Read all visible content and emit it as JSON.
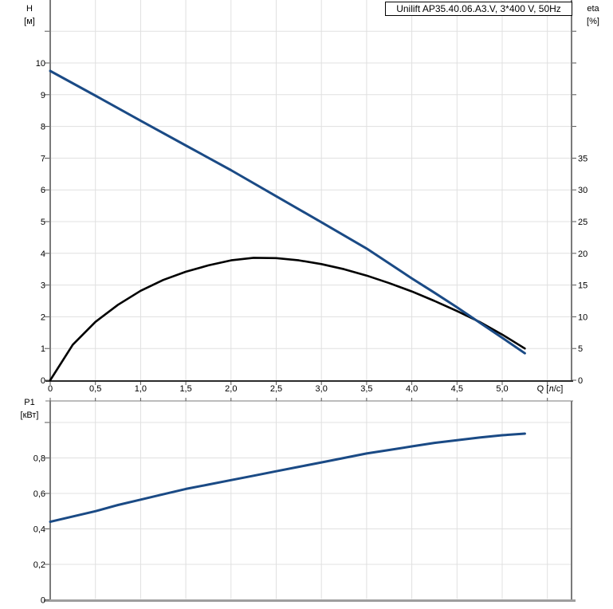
{
  "title_box": {
    "text": "Unilift AP35.40.06.A3.V, 3*400 V, 50Hz"
  },
  "colors": {
    "curve_blue": "#1a4a85",
    "curve_black": "#000000",
    "grid": "#e0e0e0",
    "axis_side": "#7a7a7a",
    "axis_bottom_top_chart": "#2b2b2b",
    "axis_bottom_bottom_chart": "#9e9e9e",
    "tick": "#555555",
    "text": "#000000",
    "background": "#ffffff"
  },
  "chart_data": [
    {
      "type": "line",
      "title": "Unilift AP35.40.06.A3.V, 3*400 V, 50Hz",
      "x_axis": {
        "label": "Q [л/с]",
        "range": [
          0,
          5.77
        ],
        "grid_step": 0.5,
        "gridlines": [
          0.5,
          1,
          1.5,
          2,
          2.5,
          3,
          3.5,
          4,
          4.5,
          5,
          5.5
        ],
        "tick_marks": [
          0,
          0.5,
          1,
          1.5,
          2,
          2.5,
          3,
          3.5,
          4,
          4.5,
          5,
          5.5
        ],
        "ticks": [
          [
            0,
            "0"
          ],
          [
            0.5,
            "0,5"
          ],
          [
            1,
            "1,0"
          ],
          [
            1.5,
            "1,5"
          ],
          [
            2,
            "2,0"
          ],
          [
            2.5,
            "2,5"
          ],
          [
            3,
            "3,0"
          ],
          [
            3.5,
            "3,5"
          ],
          [
            4,
            "4,0"
          ],
          [
            4.5,
            "4,5"
          ],
          [
            5,
            "5,0"
          ]
        ]
      },
      "y_left": {
        "label_line1": "H",
        "label_line2": "[м]",
        "range": [
          0,
          12
        ],
        "gridlines": [
          1,
          2,
          3,
          4,
          5,
          6,
          7,
          8,
          9,
          10,
          11
        ],
        "tick_marks": [
          0,
          1,
          2,
          3,
          4,
          5,
          6,
          7,
          8,
          9,
          10,
          11
        ],
        "ticks": [
          [
            0,
            "0"
          ],
          [
            1,
            "1"
          ],
          [
            2,
            "2"
          ],
          [
            3,
            "3"
          ],
          [
            4,
            "4"
          ],
          [
            5,
            "5"
          ],
          [
            6,
            "6"
          ],
          [
            7,
            "7"
          ],
          [
            8,
            "8"
          ],
          [
            9,
            "9"
          ],
          [
            10,
            "10"
          ]
        ]
      },
      "y_right": {
        "label_line1": "eta",
        "label_line2": "[%]",
        "range": [
          0,
          60
        ],
        "tick_marks": [
          0,
          5,
          10,
          15,
          20,
          25,
          30,
          35,
          40,
          45,
          50,
          55
        ],
        "ticks": [
          [
            0,
            "0"
          ],
          [
            5,
            "5"
          ],
          [
            10,
            "10"
          ],
          [
            15,
            "15"
          ],
          [
            20,
            "20"
          ],
          [
            25,
            "25"
          ],
          [
            30,
            "30"
          ],
          [
            35,
            "35"
          ]
        ]
      },
      "series": [
        {
          "name": "head-curve",
          "label": "H(Q)",
          "axis": "left",
          "color": "#1a4a85",
          "points": [
            [
              0,
              9.75
            ],
            [
              0.5,
              8.97
            ],
            [
              1,
              8.18
            ],
            [
              1.5,
              7.4
            ],
            [
              2,
              6.62
            ],
            [
              2.5,
              5.8
            ],
            [
              3,
              4.98
            ],
            [
              3.5,
              4.15
            ],
            [
              3.75,
              3.68
            ],
            [
              4,
              3.21
            ],
            [
              4.25,
              2.76
            ],
            [
              4.5,
              2.3
            ],
            [
              4.75,
              1.82
            ],
            [
              5,
              1.34
            ],
            [
              5.25,
              0.85
            ]
          ]
        },
        {
          "name": "efficiency-curve",
          "label": "eta(Q)",
          "axis": "right",
          "color": "#000000",
          "points": [
            [
              0,
              0
            ],
            [
              0.25,
              5.6
            ],
            [
              0.5,
              9.2
            ],
            [
              0.75,
              11.9
            ],
            [
              1,
              14.1
            ],
            [
              1.25,
              15.8
            ],
            [
              1.5,
              17.1
            ],
            [
              1.75,
              18.1
            ],
            [
              2,
              18.9
            ],
            [
              2.25,
              19.3
            ],
            [
              2.5,
              19.25
            ],
            [
              2.75,
              18.9
            ],
            [
              3,
              18.3
            ],
            [
              3.25,
              17.5
            ],
            [
              3.5,
              16.5
            ],
            [
              3.75,
              15.3
            ],
            [
              4,
              14.0
            ],
            [
              4.25,
              12.5
            ],
            [
              4.5,
              10.9
            ],
            [
              4.75,
              9.2
            ],
            [
              5,
              7.2
            ],
            [
              5.25,
              5.0
            ]
          ]
        }
      ]
    },
    {
      "type": "line",
      "x_axis": {
        "label": "",
        "range": [
          0,
          5.77
        ],
        "grid_step": 0.5,
        "gridlines": [
          0.5,
          1,
          1.5,
          2,
          2.5,
          3,
          3.5,
          4,
          4.5,
          5,
          5.5
        ],
        "tick_marks": [
          0,
          0.5,
          1,
          1.5,
          2,
          2.5,
          3,
          3.5,
          4,
          4.5,
          5,
          5.5
        ],
        "ticks": []
      },
      "y_left": {
        "label_line1": "P1",
        "label_line2": "[кВт]",
        "range": [
          0,
          1.11
        ],
        "gridlines": [
          0.2,
          0.4,
          0.6,
          0.8,
          1.0
        ],
        "tick_marks": [
          0,
          0.2,
          0.4,
          0.6,
          0.8,
          1.0
        ],
        "ticks": [
          [
            0,
            "0"
          ],
          [
            0.2,
            "0,2"
          ],
          [
            0.4,
            "0,4"
          ],
          [
            0.6,
            "0,6"
          ],
          [
            0.8,
            "0,8"
          ]
        ]
      },
      "series": [
        {
          "name": "power-curve",
          "label": "P1(Q)",
          "axis": "left",
          "color": "#1a4a85",
          "points": [
            [
              0,
              0.44
            ],
            [
              0.25,
              0.47
            ],
            [
              0.5,
              0.5
            ],
            [
              0.75,
              0.535
            ],
            [
              1,
              0.565
            ],
            [
              1.25,
              0.595
            ],
            [
              1.5,
              0.625
            ],
            [
              1.75,
              0.65
            ],
            [
              2,
              0.675
            ],
            [
              2.25,
              0.7
            ],
            [
              2.5,
              0.725
            ],
            [
              2.75,
              0.75
            ],
            [
              3,
              0.775
            ],
            [
              3.25,
              0.8
            ],
            [
              3.5,
              0.825
            ],
            [
              3.75,
              0.845
            ],
            [
              4,
              0.865
            ],
            [
              4.25,
              0.885
            ],
            [
              4.5,
              0.9
            ],
            [
              4.75,
              0.915
            ],
            [
              5,
              0.928
            ],
            [
              5.25,
              0.937
            ]
          ]
        }
      ]
    }
  ]
}
